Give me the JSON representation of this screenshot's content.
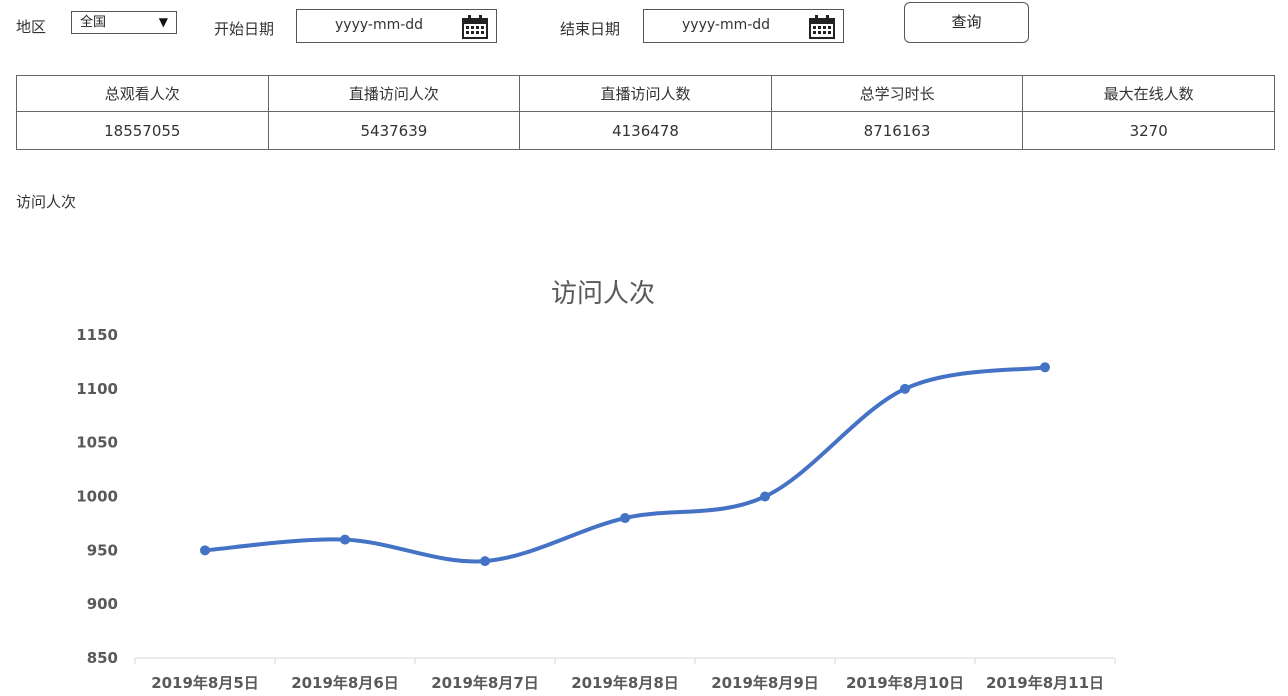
{
  "filters": {
    "region_label": "地区",
    "region_value": "全国",
    "start_label": "开始日期",
    "start_placeholder": "yyyy-mm-dd",
    "end_label": "结束日期",
    "end_placeholder": "yyyy-mm-dd",
    "query_button": "查询"
  },
  "stats": {
    "headers": [
      "总观看人次",
      "直播访问人次",
      "直播访问人数",
      "总学习时长",
      "最大在线人数"
    ],
    "values": [
      "18557055",
      "5437639",
      "4136478",
      "8716163",
      "3270"
    ]
  },
  "section_title": "访问人次",
  "chart_data": {
    "type": "line",
    "title": "访问人次",
    "categories": [
      "2019年8月5日",
      "2019年8月6日",
      "2019年8月7日",
      "2019年8月8日",
      "2019年8月9日",
      "2019年8月10日",
      "2019年8月11日"
    ],
    "series": [
      {
        "values": [
          950,
          960,
          940,
          980,
          1000,
          1100,
          1120
        ]
      }
    ],
    "yticks": [
      850,
      900,
      950,
      1000,
      1050,
      1100,
      1150
    ],
    "ylim": [
      850,
      1150
    ],
    "smooth": true,
    "grid": false,
    "legend": "none",
    "color": "#4472C4"
  }
}
